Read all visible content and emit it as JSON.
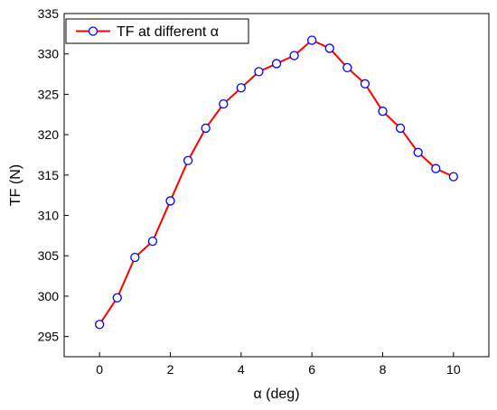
{
  "chart_data": {
    "type": "line",
    "xlabel": "α (deg)",
    "ylabel": "TF (N)",
    "xlim": [
      -1,
      11
    ],
    "ylim": [
      292.5,
      335
    ],
    "xticks": [
      0,
      2,
      4,
      6,
      8,
      10
    ],
    "yticks": [
      295,
      300,
      305,
      310,
      315,
      320,
      325,
      330,
      335
    ],
    "grid": false,
    "legend_position": "top-left",
    "series": [
      {
        "name": "TF at different α",
        "line_color": "#ff0000",
        "marker_color": "#0000ff",
        "marker": "open-circle",
        "x": [
          0,
          0.5,
          1,
          1.5,
          2,
          2.5,
          3,
          3.5,
          4,
          4.5,
          5,
          5.5,
          6,
          6.5,
          7,
          7.5,
          8,
          8.5,
          9,
          9.5,
          10
        ],
        "y": [
          296.5,
          299.8,
          304.8,
          306.8,
          311.8,
          316.8,
          320.8,
          323.8,
          325.8,
          327.8,
          328.8,
          329.8,
          331.7,
          330.7,
          328.3,
          326.3,
          322.9,
          320.8,
          317.8,
          315.8,
          314.8
        ]
      }
    ]
  }
}
